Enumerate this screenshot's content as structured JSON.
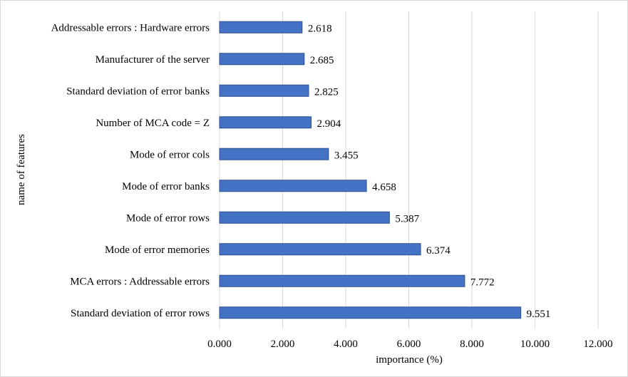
{
  "chart_data": {
    "type": "bar",
    "orientation": "horizontal",
    "title": "",
    "xlabel": "importance  (%)",
    "ylabel": "name of features",
    "xlim": [
      0,
      12
    ],
    "x_ticks": [
      "0.000",
      "2.000",
      "4.000",
      "6.000",
      "8.000",
      "10.000",
      "12.000"
    ],
    "grid": true,
    "legend": "none",
    "bar_color": "#4472C4",
    "categories": [
      "Addressable errors : Hardware errors",
      "Manufacturer of the server",
      "Standard deviation of error banks",
      "Number of MCA code = Z",
      "Mode of error cols",
      "Mode of error banks",
      "Mode of error rows",
      "Mode of error memories",
      "MCA errors : Addressable errors",
      "Standard deviation of error rows"
    ],
    "values": [
      2.618,
      2.685,
      2.825,
      2.904,
      3.455,
      4.658,
      5.387,
      6.374,
      7.772,
      9.551
    ],
    "value_labels": [
      "2.618",
      "2.685",
      "2.825",
      "2.904",
      "3.455",
      "4.658",
      "5.387",
      "6.374",
      "7.772",
      "9.551"
    ]
  }
}
